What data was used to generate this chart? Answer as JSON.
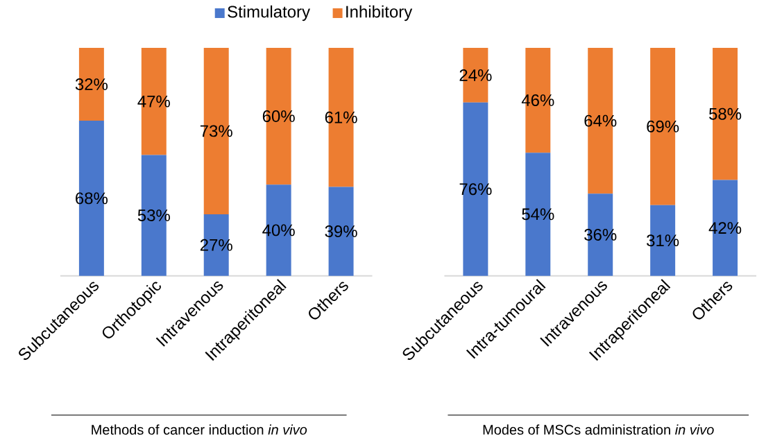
{
  "chart_data": [
    {
      "type": "bar",
      "stacked": true,
      "xlabel": "Methods of cancer induction *in vivo*",
      "categories": [
        "Subcutaneous",
        "Orthotopic",
        "Intravenous",
        "Intraperitoneal",
        "Others"
      ],
      "legend": "top",
      "series": [
        {
          "name": "Stimulatory",
          "color": "#4a78cc",
          "values": [
            68,
            53,
            27,
            40,
            39
          ],
          "value_labels": [
            "68%",
            "53%",
            "27%",
            "40%",
            "39%"
          ]
        },
        {
          "name": "Inhibitory",
          "color": "#ed7d31",
          "values": [
            32,
            47,
            73,
            60,
            61
          ],
          "value_labels": [
            "32%",
            "47%",
            "73%",
            "60%",
            "61%"
          ]
        }
      ]
    },
    {
      "type": "bar",
      "stacked": true,
      "xlabel": "Modes of MSCs administration *in vivo*",
      "categories": [
        "Subcutaneous",
        "Intra-tumoural",
        "Intravenous",
        "Intraperitoneal",
        "Others"
      ],
      "series": [
        {
          "color": "#4a78cc",
          "values": [
            76,
            54,
            36,
            31,
            42
          ],
          "value_labels": [
            "76%",
            "54%",
            "36%",
            "31%",
            "42%"
          ]
        },
        {
          "color": "#ed7d31",
          "values": [
            24,
            46,
            64,
            69,
            58
          ],
          "value_labels": [
            "24%",
            "46%",
            "64%",
            "69%",
            "58%"
          ]
        }
      ]
    }
  ]
}
